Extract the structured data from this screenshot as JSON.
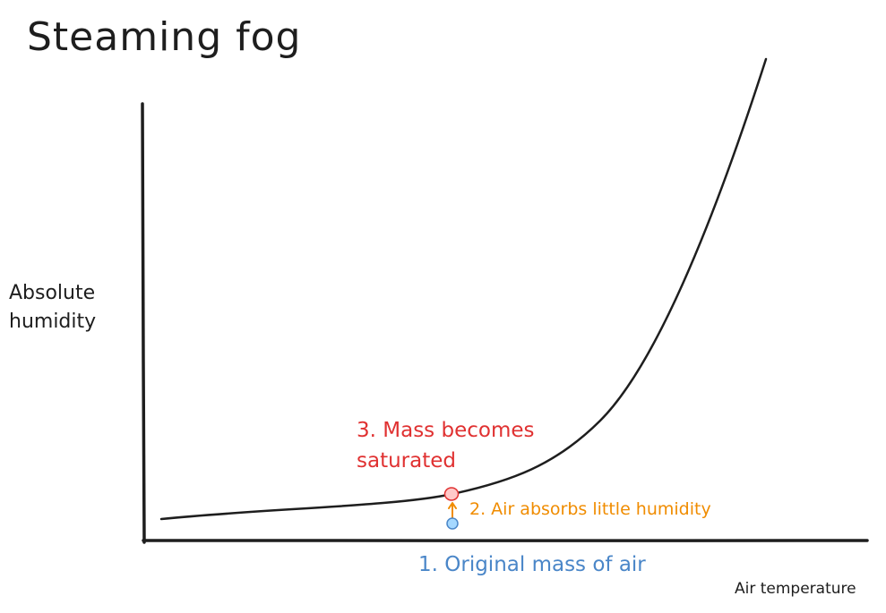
{
  "title": "Steaming fog",
  "axes": {
    "y_label": "Absolute humidity",
    "x_label": "Air temperature"
  },
  "annotations": {
    "step1": "1. Original mass of air",
    "step2": "2. Air absorbs little humidity",
    "step3": "3. Mass becomes saturated"
  },
  "colors": {
    "ink": "#1e1e1e",
    "step1": "#4a86c8",
    "step2": "#f08c00",
    "step3": "#e03131",
    "point1_fill": "#a5d8ff",
    "point3_fill": "#ffc9c9"
  }
}
